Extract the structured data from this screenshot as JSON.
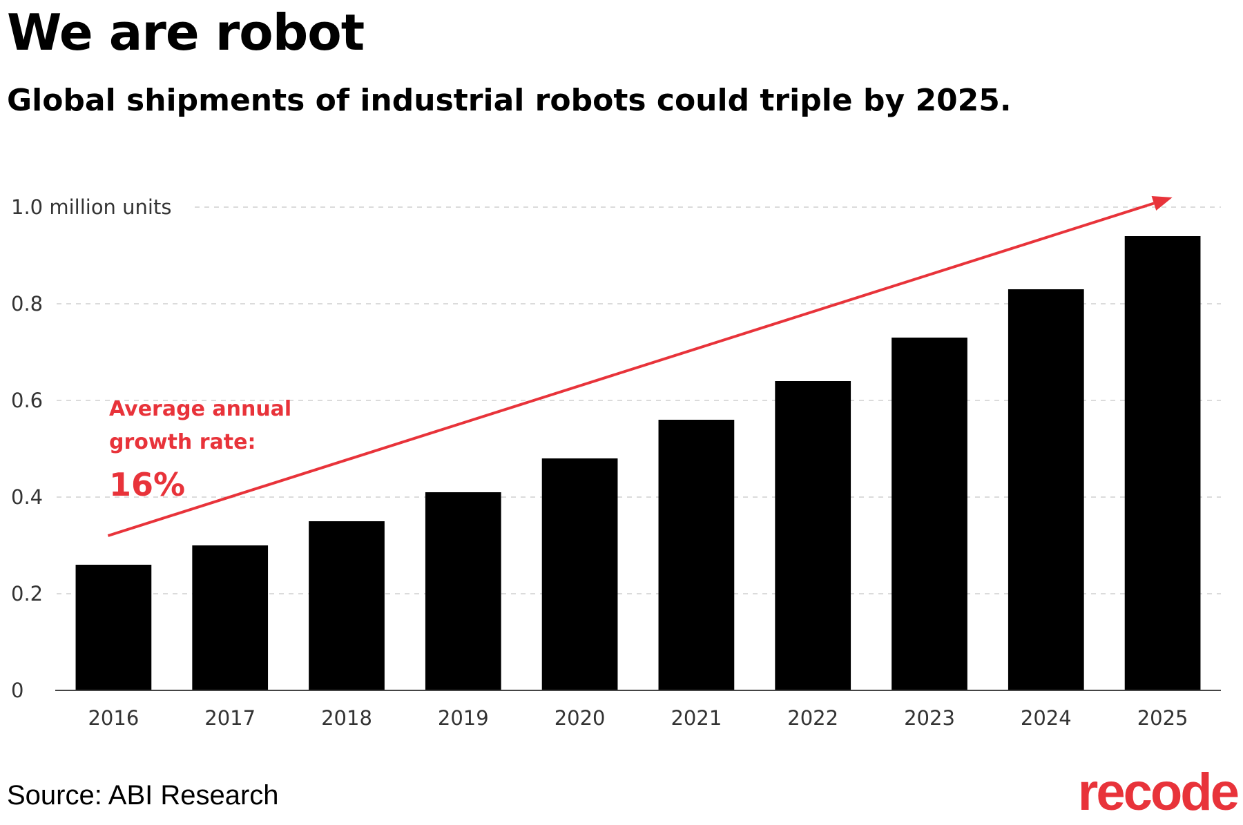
{
  "title": "We are robot",
  "subtitle": "Global shipments of industrial robots could triple by 2025.",
  "source": "Source: ABI Research",
  "logo": "recode",
  "colors": {
    "bar": "#000000",
    "accent": "#e8333a",
    "grid": "#cfcfcf",
    "axis_text": "#333333"
  },
  "chart_data": {
    "type": "bar",
    "categories": [
      "2016",
      "2017",
      "2018",
      "2019",
      "2020",
      "2021",
      "2022",
      "2023",
      "2024",
      "2025"
    ],
    "values": [
      0.26,
      0.3,
      0.35,
      0.41,
      0.48,
      0.56,
      0.64,
      0.73,
      0.83,
      0.94
    ],
    "ylim": [
      0,
      1.0
    ],
    "yticks": [
      0,
      0.2,
      0.4,
      0.6,
      0.8,
      1.0
    ],
    "ytick_labels": [
      "0",
      "0.2",
      "0.4",
      "0.6",
      "0.8",
      "1.0 million units"
    ],
    "grid": true,
    "annotation": {
      "label": "Average annual growth rate:",
      "label_lines": [
        "Average annual",
        "growth rate:"
      ],
      "value": "16%"
    },
    "trend_arrow": {
      "from_value": 0.32,
      "to_value": 1.02
    }
  }
}
